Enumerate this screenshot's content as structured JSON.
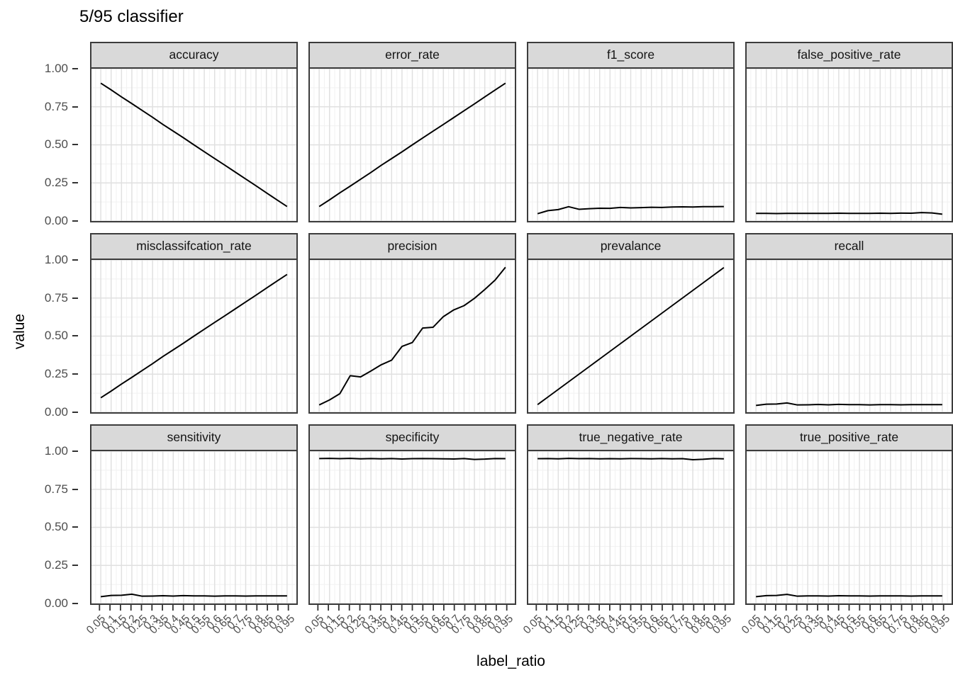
{
  "chart_data": {
    "type": "line",
    "title": "5/95 classifier",
    "xlabel": "label_ratio",
    "ylabel": "value",
    "legend": "none",
    "grid": "major+minor",
    "xlim": [
      0.005,
      0.995
    ],
    "ylim": [
      0,
      1
    ],
    "x": [
      0.05,
      0.1,
      0.15,
      0.2,
      0.25,
      0.3,
      0.35,
      0.4,
      0.45,
      0.5,
      0.55,
      0.6,
      0.65,
      0.7,
      0.75,
      0.8,
      0.85,
      0.9,
      0.95
    ],
    "x_tick_labels": [
      "0.05",
      "0.1",
      "0.15",
      "0.2",
      "0.25",
      "0.3",
      "0.35",
      "0.4",
      "0.45",
      "0.5",
      "0.55",
      "0.6",
      "0.65",
      "0.7",
      "0.75",
      "0.8",
      "0.85",
      "0.9",
      "0.95"
    ],
    "y_tick_labels": [
      "1.00",
      "0.75",
      "0.50",
      "0.25",
      "0.00"
    ],
    "y_tick_values": [
      1.0,
      0.75,
      0.5,
      0.25,
      0.0
    ],
    "y_minor_gridlines": [
      0.125,
      0.375,
      0.625,
      0.875
    ],
    "facet_layout": {
      "rows": 3,
      "cols": 4
    },
    "facets": [
      {
        "label": "accuracy",
        "values": [
          0.905,
          0.861,
          0.815,
          0.771,
          0.726,
          0.681,
          0.634,
          0.59,
          0.546,
          0.5,
          0.455,
          0.41,
          0.366,
          0.321,
          0.276,
          0.231,
          0.185,
          0.14,
          0.095
        ]
      },
      {
        "label": "error_rate",
        "values": [
          0.095,
          0.139,
          0.185,
          0.229,
          0.274,
          0.319,
          0.366,
          0.41,
          0.454,
          0.5,
          0.545,
          0.59,
          0.634,
          0.679,
          0.724,
          0.769,
          0.815,
          0.86,
          0.905
        ]
      },
      {
        "label": "f1_score",
        "values": [
          0.048,
          0.068,
          0.075,
          0.094,
          0.077,
          0.081,
          0.084,
          0.083,
          0.089,
          0.086,
          0.088,
          0.09,
          0.089,
          0.092,
          0.093,
          0.092,
          0.094,
          0.094,
          0.095
        ]
      },
      {
        "label": "false_positive_rate",
        "values": [
          0.05,
          0.05,
          0.049,
          0.05,
          0.05,
          0.05,
          0.05,
          0.05,
          0.051,
          0.05,
          0.05,
          0.05,
          0.051,
          0.05,
          0.052,
          0.051,
          0.055,
          0.053,
          0.045
        ]
      },
      {
        "label": "misclassifcation_rate",
        "values": [
          0.095,
          0.139,
          0.185,
          0.229,
          0.274,
          0.319,
          0.366,
          0.41,
          0.454,
          0.5,
          0.545,
          0.59,
          0.634,
          0.679,
          0.724,
          0.769,
          0.815,
          0.86,
          0.905
        ]
      },
      {
        "label": "precision",
        "values": [
          0.048,
          0.081,
          0.122,
          0.24,
          0.232,
          0.271,
          0.312,
          0.342,
          0.432,
          0.458,
          0.553,
          0.558,
          0.628,
          0.672,
          0.7,
          0.748,
          0.806,
          0.868,
          0.952
        ]
      },
      {
        "label": "prevalance",
        "values": [
          0.05,
          0.1,
          0.15,
          0.2,
          0.25,
          0.3,
          0.35,
          0.4,
          0.45,
          0.5,
          0.55,
          0.6,
          0.65,
          0.7,
          0.75,
          0.8,
          0.85,
          0.9,
          0.95
        ]
      },
      {
        "label": "recall",
        "values": [
          0.045,
          0.053,
          0.054,
          0.061,
          0.048,
          0.049,
          0.051,
          0.049,
          0.052,
          0.05,
          0.05,
          0.048,
          0.05,
          0.05,
          0.049,
          0.05,
          0.05,
          0.05,
          0.05
        ]
      },
      {
        "label": "sensitivity",
        "values": [
          0.045,
          0.053,
          0.054,
          0.061,
          0.048,
          0.049,
          0.051,
          0.049,
          0.052,
          0.05,
          0.05,
          0.048,
          0.05,
          0.05,
          0.049,
          0.05,
          0.05,
          0.05,
          0.05
        ]
      },
      {
        "label": "specificity",
        "values": [
          0.952,
          0.953,
          0.951,
          0.953,
          0.95,
          0.952,
          0.95,
          0.952,
          0.949,
          0.951,
          0.952,
          0.951,
          0.95,
          0.949,
          0.952,
          0.946,
          0.948,
          0.952,
          0.951
        ]
      },
      {
        "label": "true_negative_rate",
        "values": [
          0.951,
          0.952,
          0.95,
          0.953,
          0.951,
          0.952,
          0.95,
          0.951,
          0.95,
          0.952,
          0.951,
          0.95,
          0.952,
          0.95,
          0.951,
          0.944,
          0.947,
          0.952,
          0.95
        ]
      },
      {
        "label": "true_positive_rate",
        "values": [
          0.045,
          0.052,
          0.053,
          0.06,
          0.048,
          0.05,
          0.05,
          0.049,
          0.051,
          0.05,
          0.05,
          0.049,
          0.05,
          0.05,
          0.05,
          0.049,
          0.05,
          0.05,
          0.05
        ]
      }
    ],
    "colors": {
      "line": "#000000",
      "strip_background": "#d9d9d9",
      "strip_border": "#3c3c3c",
      "panel_border": "#3c3c3c",
      "grid_major": "#e0e0e0",
      "grid_minor": "#f1f1f1",
      "tick_mark": "#333333",
      "axis_text": "#4d4d4d",
      "title_text": "#000000"
    }
  }
}
